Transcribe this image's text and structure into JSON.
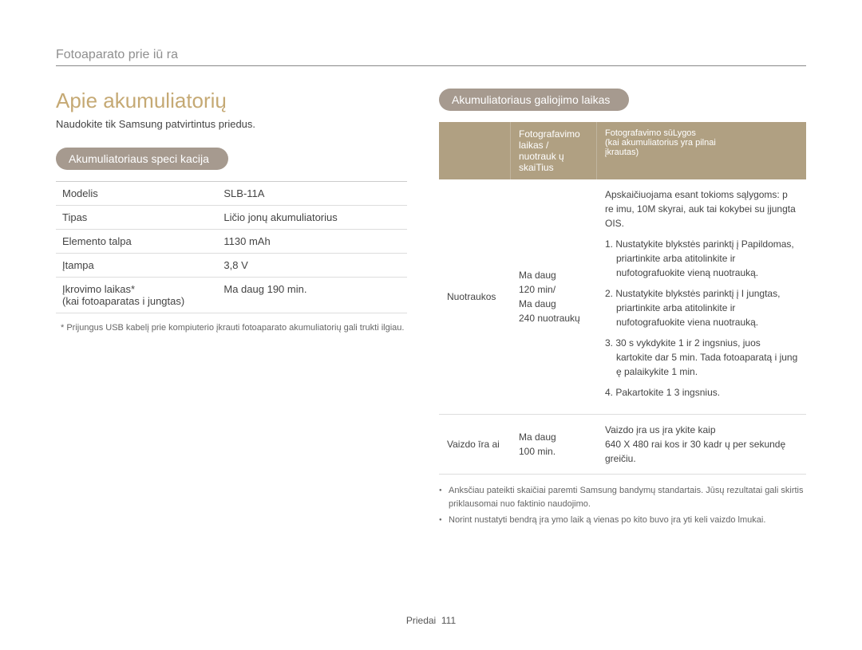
{
  "header": {
    "breadcrumb": "Fotoaparato prie iū ra"
  },
  "main": {
    "heading": "Apie akumuliatorių",
    "note": "Naudokite tik  Samsung  patvirtintus priedus."
  },
  "spec": {
    "pill": "Akumuliatoriaus speci     kacija",
    "rows": [
      {
        "label": "Modelis",
        "value": "SLB-11A"
      },
      {
        "label": "Tipas",
        "value": "Ličio jonų akumuliatorius"
      },
      {
        "label": "Elemento talpa",
        "value": "1130 mAh"
      },
      {
        "label": "Įtampa",
        "value": "3,8 V"
      },
      {
        "label": "Įkrovimo laikas*\n(kai fotoaparatas i jungtas)",
        "value": "Ma daug 190 min."
      }
    ],
    "footnote": "* Prijungus USB kabelį prie kompiuterio įkrauti fotoaparato akumuliatorių gali trukti ilgiau."
  },
  "life": {
    "pill": "Akumuliatoriaus galiojimo laikas",
    "headers": {
      "col1": "",
      "col2": "Fotografavimo laikas /\nnuotrauk ų  skaiTius",
      "col3": "Fotografavimo sūLygos\n(kai akumuliatorius yra pilnai\nįkrautas)"
    },
    "rows": [
      {
        "label": "Nuotraukos",
        "time": "Ma daug\n120 min/\nMa daug\n240 nuotraukų",
        "desc_intro": "Apskaičiuojama esant tokioms sąlygoms: p  re imu, 10M skyrai,  auk tai kokybei su  įjungta OIS.",
        "steps": [
          "1. Nustatykite blykstės parinktį į Papildomas, priartinkite arba atitolinkite ir nufotografuokite vieną nuotrauką.",
          "2. Nustatykite blykstės parinktį į I jungtas, priartinkite arba atitolinkite ir nufotografuokite viena nuotrauką.",
          "3. 30 s vykdykite 1 ir 2  ingsnius, juos kartokite dar 5 min. Tada fotoaparatą i jung ę palaikykite 1 min.",
          "4. Pakartokite 1 3  ingsnius."
        ]
      },
      {
        "label": "Vaizdo  īra ai",
        "time": "Ma daug\n100 min.",
        "desc": "Vaizdo įra us  įra ykite kaip\n640 X 480 rai kos ir 30 kadr ų per sekundę greičiu."
      }
    ],
    "bullets": [
      "Anksčiau pateikti skaičiai paremti  Samsung  bandymų standartais. Jūsų rezultatai gali skirtis priklausomai nuo faktinio naudojimo.",
      "Norint nustatyti bendrą įra ymo laik ą vienas po kito buvo įra yti keli vaizdo lmukai."
    ]
  },
  "footer": {
    "section": "Priedai",
    "page": "111"
  }
}
